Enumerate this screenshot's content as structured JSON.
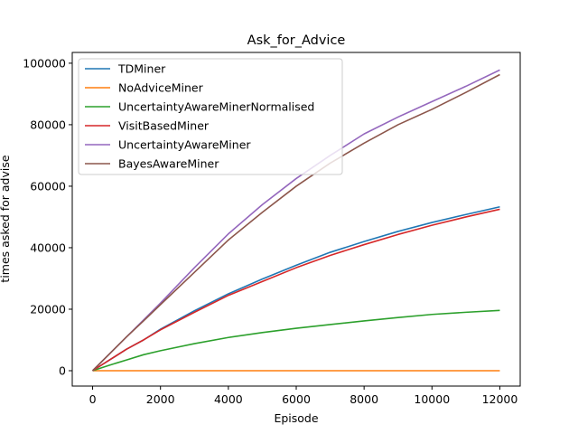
{
  "chart_data": {
    "type": "line",
    "title": "Ask_for_Advice",
    "xlabel": "Episode",
    "ylabel": "times asked for advise",
    "xlim": [
      -600,
      12600
    ],
    "ylim": [
      -5000,
      103500
    ],
    "xticks": [
      0,
      2000,
      4000,
      6000,
      8000,
      10000,
      12000
    ],
    "yticks": [
      0,
      20000,
      40000,
      60000,
      80000,
      100000
    ],
    "xtick_labels": [
      "0",
      "2000",
      "4000",
      "6000",
      "8000",
      "10000",
      "12000"
    ],
    "ytick_labels": [
      "0",
      "20000",
      "40000",
      "60000",
      "80000",
      "100000"
    ],
    "grid": false,
    "legend_position": "top-left",
    "x": [
      0,
      500,
      1000,
      1500,
      2000,
      3000,
      4000,
      5000,
      6000,
      7000,
      8000,
      9000,
      10000,
      11000,
      12000
    ],
    "series": [
      {
        "name": "TDMiner",
        "color": "#1f77b4",
        "values": [
          0,
          3500,
          7000,
          10000,
          13500,
          19500,
          25000,
          29800,
          34300,
          38500,
          42000,
          45300,
          48200,
          50800,
          53300
        ]
      },
      {
        "name": "NoAdviceMiner",
        "color": "#ff7f0e",
        "values": [
          0,
          0,
          0,
          0,
          0,
          0,
          0,
          0,
          0,
          0,
          0,
          0,
          0,
          0,
          0
        ]
      },
      {
        "name": "UncertaintyAwareMinerNormalised",
        "color": "#2ca02c",
        "values": [
          0,
          1800,
          3500,
          5200,
          6500,
          8800,
          10800,
          12400,
          13800,
          15000,
          16200,
          17300,
          18300,
          19000,
          19600
        ]
      },
      {
        "name": "VisitBasedMiner",
        "color": "#d62728",
        "values": [
          0,
          3500,
          7000,
          10000,
          13300,
          19000,
          24500,
          29000,
          33500,
          37500,
          41000,
          44300,
          47300,
          50000,
          52500
        ]
      },
      {
        "name": "UncertaintyAwareMiner",
        "color": "#9467bd",
        "values": [
          0,
          5500,
          11000,
          16500,
          22000,
          33500,
          44500,
          54000,
          62500,
          70000,
          77000,
          82500,
          87500,
          92500,
          97800
        ]
      },
      {
        "name": "BayesAwareMiner",
        "color": "#8c564b",
        "values": [
          0,
          5500,
          11000,
          16200,
          21500,
          32000,
          42500,
          51500,
          60000,
          67500,
          74000,
          80000,
          85000,
          90500,
          96300
        ]
      }
    ]
  }
}
